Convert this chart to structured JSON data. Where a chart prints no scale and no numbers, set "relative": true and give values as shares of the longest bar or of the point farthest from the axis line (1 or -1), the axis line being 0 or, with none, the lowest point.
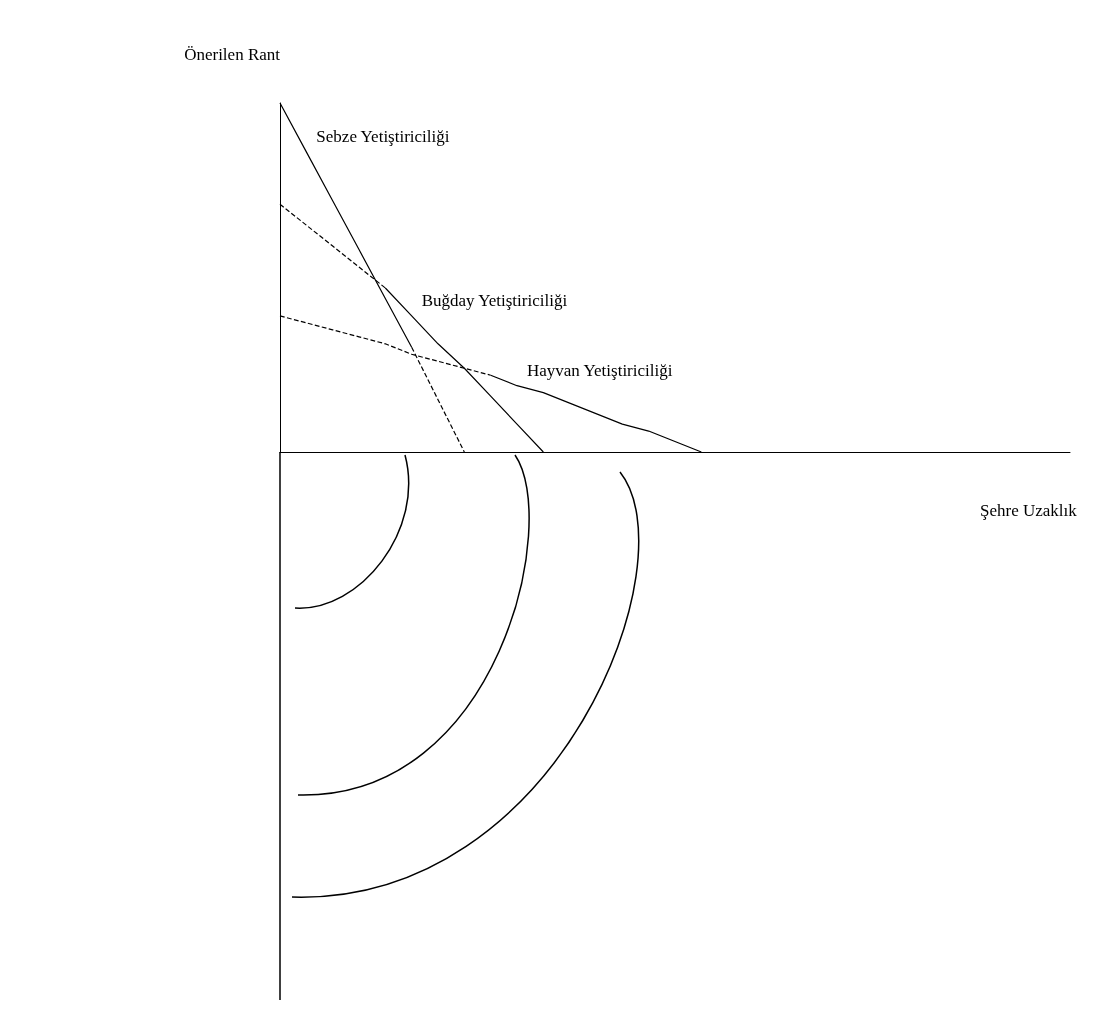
{
  "chart_data": {
    "type": "line",
    "relative": true,
    "xlabel": "Şehre Uzaklık",
    "ylabel": "Önerilen Rant",
    "grid": false,
    "legend": false,
    "marker": "none",
    "categories": [
      null,
      null,
      null,
      null,
      null,
      null,
      null,
      null,
      null,
      null,
      null,
      null,
      null,
      null,
      null,
      null,
      null,
      null,
      null,
      null,
      null,
      null,
      null,
      null,
      null,
      null,
      null,
      null,
      null,
      null,
      null
    ],
    "series": [
      {
        "name": "Sebze Yetiştiriciliği",
        "color": "#000000",
        "line_style": "solid",
        "values": [
          1,
          0.86,
          0.72,
          0.58,
          0.44,
          0.3,
          null,
          null,
          null,
          null,
          null,
          null,
          null,
          null,
          null,
          null,
          null,
          null,
          null,
          null,
          null,
          null,
          null,
          null,
          null,
          null,
          null,
          null,
          null,
          null,
          null
        ]
      },
      {
        "color": "#000000",
        "line_style": "dashed",
        "values": [
          null,
          null,
          null,
          null,
          null,
          0.3,
          0.15,
          0,
          null,
          null,
          null,
          null,
          null,
          null,
          null,
          null,
          null,
          null,
          null,
          null,
          null,
          null,
          null,
          null,
          null,
          null,
          null,
          null,
          null,
          null,
          null
        ]
      },
      {
        "color": "#000000",
        "line_style": "dashed",
        "values": [
          0.71,
          0.65,
          0.59,
          0.53,
          0.47,
          null,
          null,
          null,
          null,
          null,
          null,
          null,
          null,
          null,
          null,
          null,
          null,
          null,
          null,
          null,
          null,
          null,
          null,
          null,
          null,
          null,
          null,
          null,
          null,
          null,
          null
        ]
      },
      {
        "name": "Buğday Yetiştiriciliği",
        "color": "#000000",
        "line_style": "solid",
        "values": [
          null,
          null,
          null,
          null,
          0.47,
          0.39,
          0.31,
          0.24,
          0.16,
          0.08,
          0,
          null,
          null,
          null,
          null,
          null,
          null,
          null,
          null,
          null,
          null,
          null,
          null,
          null,
          null,
          null,
          null,
          null,
          null,
          null,
          null
        ]
      },
      {
        "color": "#000000",
        "line_style": "dashed",
        "values": [
          0.39,
          0.37,
          0.35,
          0.33,
          0.31,
          0.28,
          0.26,
          0.24,
          0.22,
          null,
          null,
          null,
          null,
          null,
          null,
          null,
          null,
          null,
          null,
          null,
          null,
          null,
          null,
          null,
          null,
          null,
          null,
          null,
          null,
          null,
          null
        ]
      },
      {
        "name": "Hayvan Yetiştiriciliği",
        "color": "#000000",
        "line_style": "solid",
        "values": [
          null,
          null,
          null,
          null,
          null,
          null,
          null,
          null,
          0.22,
          0.19,
          0.17,
          0.14,
          0.11,
          0.08,
          0.06,
          0.03,
          0,
          null,
          null,
          null,
          null,
          null,
          null,
          null,
          null,
          null,
          null,
          null,
          null,
          null,
          null
        ]
      }
    ]
  }
}
